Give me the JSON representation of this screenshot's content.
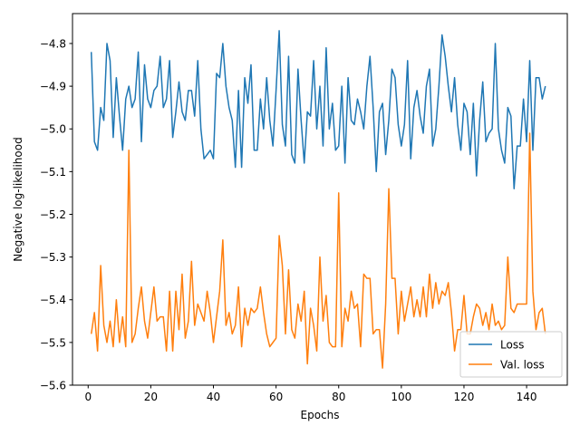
{
  "chart_data": {
    "type": "line",
    "title": "",
    "xlabel": "Epochs",
    "ylabel": "Negative log-likelihood",
    "xlim": [
      -5,
      153
    ],
    "ylim": [
      -5.6,
      -4.73
    ],
    "xticks": [
      0,
      20,
      40,
      60,
      80,
      100,
      120,
      140
    ],
    "yticks": [
      -5.6,
      -5.5,
      -5.4,
      -5.3,
      -5.2,
      -5.1,
      -5.0,
      -4.9,
      -4.8
    ],
    "ytick_labels": [
      "−5.6",
      "−5.5",
      "−5.4",
      "−5.3",
      "−5.2",
      "−5.1",
      "−5.0",
      "−4.9",
      "−4.8"
    ],
    "legend_position": "lower-right",
    "grid": false,
    "x": [
      1,
      2,
      3,
      4,
      5,
      6,
      7,
      8,
      9,
      10,
      11,
      12,
      13,
      14,
      15,
      16,
      17,
      18,
      19,
      20,
      21,
      22,
      23,
      24,
      25,
      26,
      27,
      28,
      29,
      30,
      31,
      32,
      33,
      34,
      35,
      36,
      37,
      38,
      39,
      40,
      41,
      42,
      43,
      44,
      45,
      46,
      47,
      48,
      49,
      50,
      51,
      52,
      53,
      54,
      55,
      56,
      57,
      58,
      59,
      60,
      61,
      62,
      63,
      64,
      65,
      66,
      67,
      68,
      69,
      70,
      71,
      72,
      73,
      74,
      75,
      76,
      77,
      78,
      79,
      80,
      81,
      82,
      83,
      84,
      85,
      86,
      87,
      88,
      89,
      90,
      91,
      92,
      93,
      94,
      95,
      96,
      97,
      98,
      99,
      100,
      101,
      102,
      103,
      104,
      105,
      106,
      107,
      108,
      109,
      110,
      111,
      112,
      113,
      114,
      115,
      116,
      117,
      118,
      119,
      120,
      121,
      122,
      123,
      124,
      125,
      126,
      127,
      128,
      129,
      130,
      131,
      132,
      133,
      134,
      135,
      136,
      137,
      138,
      139,
      140,
      141,
      142,
      143,
      144,
      145,
      146
    ],
    "series": [
      {
        "name": "Loss",
        "color": "#1f77b4",
        "values": [
          -4.82,
          -5.03,
          -5.05,
          -4.95,
          -4.98,
          -4.8,
          -4.84,
          -5.02,
          -4.88,
          -4.97,
          -5.05,
          -4.93,
          -4.9,
          -4.95,
          -4.93,
          -4.82,
          -5.03,
          -4.85,
          -4.93,
          -4.95,
          -4.91,
          -4.9,
          -4.83,
          -4.95,
          -4.93,
          -4.84,
          -5.02,
          -4.96,
          -4.89,
          -4.96,
          -4.98,
          -4.91,
          -4.91,
          -4.97,
          -4.84,
          -5.0,
          -5.07,
          -5.06,
          -5.05,
          -5.07,
          -4.87,
          -4.88,
          -4.8,
          -4.9,
          -4.95,
          -4.98,
          -5.09,
          -4.91,
          -5.09,
          -4.88,
          -4.94,
          -4.85,
          -5.05,
          -5.05,
          -4.93,
          -5.0,
          -4.88,
          -4.98,
          -5.04,
          -4.91,
          -4.77,
          -4.99,
          -5.04,
          -4.83,
          -5.06,
          -5.08,
          -4.86,
          -4.98,
          -5.08,
          -4.96,
          -4.97,
          -4.84,
          -5.0,
          -4.9,
          -5.04,
          -4.81,
          -5.0,
          -4.94,
          -5.05,
          -5.04,
          -4.9,
          -5.08,
          -4.88,
          -4.98,
          -4.99,
          -4.93,
          -4.96,
          -5.0,
          -4.9,
          -4.83,
          -4.95,
          -5.1,
          -4.96,
          -4.94,
          -5.06,
          -4.98,
          -4.86,
          -4.88,
          -4.99,
          -5.04,
          -4.99,
          -4.84,
          -5.07,
          -4.95,
          -4.91,
          -4.97,
          -5.01,
          -4.9,
          -4.86,
          -5.04,
          -5.0,
          -4.9,
          -4.78,
          -4.83,
          -4.9,
          -4.96,
          -4.88,
          -4.99,
          -5.05,
          -4.94,
          -4.96,
          -5.06,
          -4.94,
          -5.11,
          -4.98,
          -4.89,
          -5.03,
          -5.01,
          -5.0,
          -4.8,
          -5.0,
          -5.05,
          -5.08,
          -4.95,
          -4.97,
          -5.14,
          -5.04,
          -5.04,
          -4.93,
          -5.03,
          -4.84,
          -5.05,
          -4.88,
          -4.88,
          -4.93,
          -4.9
        ]
      },
      {
        "name": "Val. loss",
        "color": "#ff7f0e",
        "values": [
          -5.48,
          -5.43,
          -5.52,
          -5.32,
          -5.46,
          -5.5,
          -5.45,
          -5.51,
          -5.4,
          -5.5,
          -5.44,
          -5.51,
          -5.05,
          -5.5,
          -5.48,
          -5.42,
          -5.37,
          -5.45,
          -5.49,
          -5.43,
          -5.37,
          -5.45,
          -5.44,
          -5.44,
          -5.52,
          -5.38,
          -5.52,
          -5.38,
          -5.47,
          -5.34,
          -5.49,
          -5.45,
          -5.31,
          -5.46,
          -5.41,
          -5.43,
          -5.45,
          -5.38,
          -5.43,
          -5.5,
          -5.44,
          -5.38,
          -5.26,
          -5.46,
          -5.43,
          -5.48,
          -5.46,
          -5.37,
          -5.51,
          -5.42,
          -5.46,
          -5.42,
          -5.43,
          -5.42,
          -5.37,
          -5.43,
          -5.48,
          -5.51,
          -5.5,
          -5.49,
          -5.25,
          -5.32,
          -5.48,
          -5.33,
          -5.47,
          -5.49,
          -5.41,
          -5.45,
          -5.38,
          -5.55,
          -5.42,
          -5.46,
          -5.52,
          -5.3,
          -5.45,
          -5.39,
          -5.5,
          -5.51,
          -5.51,
          -5.15,
          -5.51,
          -5.42,
          -5.45,
          -5.38,
          -5.42,
          -5.41,
          -5.51,
          -5.34,
          -5.35,
          -5.35,
          -5.48,
          -5.47,
          -5.47,
          -5.56,
          -5.41,
          -5.14,
          -5.35,
          -5.35,
          -5.48,
          -5.38,
          -5.45,
          -5.41,
          -5.37,
          -5.44,
          -5.4,
          -5.44,
          -5.37,
          -5.44,
          -5.34,
          -5.42,
          -5.36,
          -5.41,
          -5.38,
          -5.39,
          -5.36,
          -5.43,
          -5.52,
          -5.47,
          -5.47,
          -5.39,
          -5.48,
          -5.48,
          -5.44,
          -5.41,
          -5.42,
          -5.46,
          -5.43,
          -5.47,
          -5.41,
          -5.46,
          -5.45,
          -5.47,
          -5.46,
          -5.3,
          -5.42,
          -5.43,
          -5.41,
          -5.41,
          -5.41,
          -5.41,
          -5.01,
          -5.38,
          -5.47,
          -5.43,
          -5.42,
          -5.48
        ]
      }
    ]
  }
}
